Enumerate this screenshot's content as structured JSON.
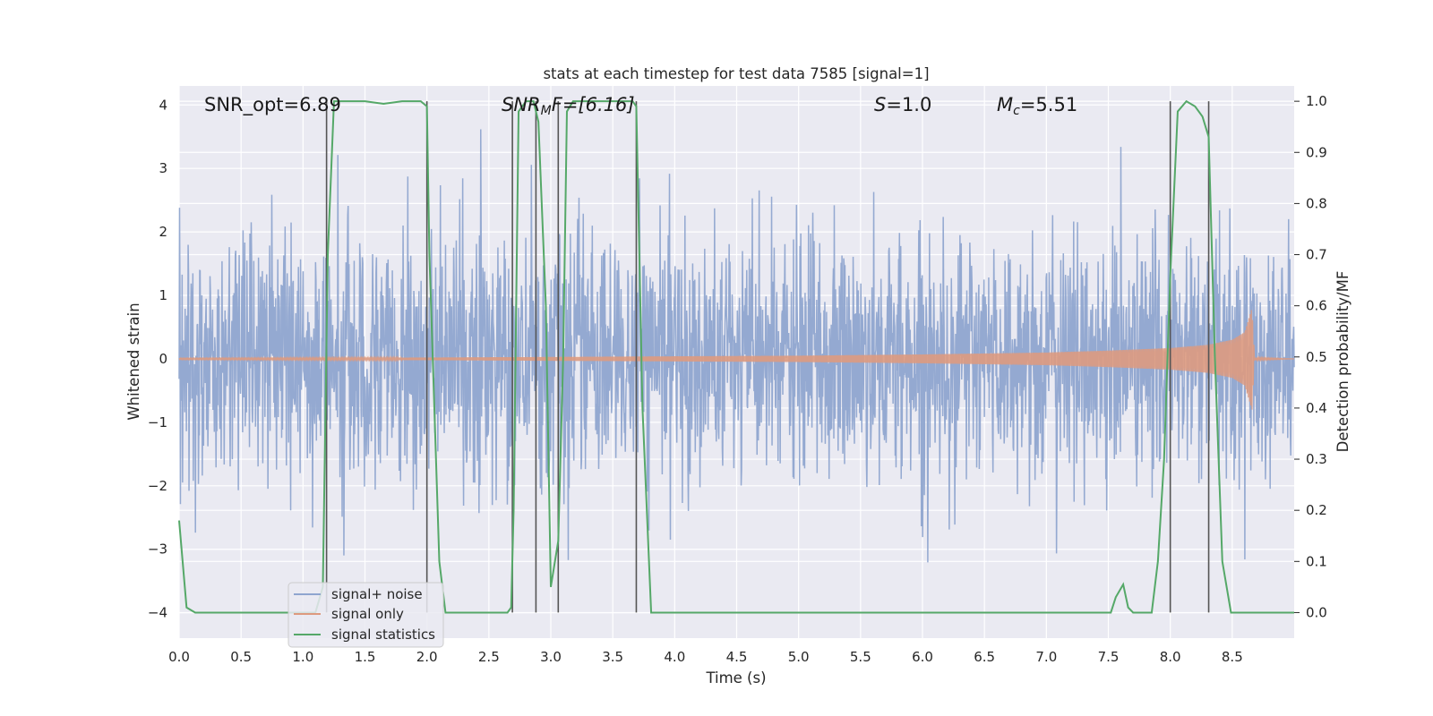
{
  "chart_data": {
    "type": "line",
    "title": "stats at each timestep for test data 7585 [signal=1]",
    "xlabel": "Time (s)",
    "ylabel_left": "Whitened strain",
    "ylabel_right": "Detection probability/MF",
    "xlim": [
      0,
      9
    ],
    "ylim_left": [
      -4.4,
      4.3
    ],
    "ylim_right": [
      -0.05,
      1.03
    ],
    "x_ticks": [
      "0.0",
      "0.5",
      "1.0",
      "1.5",
      "2.0",
      "2.5",
      "3.0",
      "3.5",
      "4.0",
      "4.5",
      "5.0",
      "5.5",
      "6.0",
      "6.5",
      "7.0",
      "7.5",
      "8.0",
      "8.5"
    ],
    "y_left_ticks": [
      "4",
      "3",
      "2",
      "1",
      "0",
      "−1",
      "−2",
      "−3",
      "−4"
    ],
    "y_right_ticks": [
      "1.0",
      "0.9",
      "0.8",
      "0.7",
      "0.6",
      "0.5",
      "0.4",
      "0.3",
      "0.2",
      "0.1",
      "0.0"
    ],
    "grid": true,
    "legend_position": "lower-left",
    "annotations": {
      "snr_opt": "SNR_opt=6.89",
      "snr_mf_main": "SNR",
      "snr_mf_sub": "M",
      "snr_mf_rest": "F=[6.16]",
      "s_main": "S",
      "s_rest": "=1.0",
      "mc_main": "M",
      "mc_sub": "c",
      "mc_rest": "=5.51"
    },
    "vertical_lines_x": [
      1.19,
      2.0,
      2.69,
      2.88,
      3.06,
      3.69,
      8.0,
      8.31
    ],
    "series": [
      {
        "name": "signal+ noise",
        "color": "#8fa5cf",
        "axis": "left",
        "description_values": {
          "noise_std": 0.95,
          "x_range": [
            0,
            9
          ]
        }
      },
      {
        "name": "signal only",
        "color": "#dd9a7f",
        "axis": "left",
        "envelope": {
          "x": [
            0.0,
            2.0,
            3.0,
            4.0,
            5.0,
            6.0,
            7.0,
            7.5,
            8.0,
            8.3,
            8.5,
            8.6,
            8.66,
            8.68,
            9.0
          ],
          "amp": [
            0.01,
            0.02,
            0.03,
            0.04,
            0.05,
            0.07,
            0.1,
            0.13,
            0.17,
            0.22,
            0.3,
            0.42,
            0.8,
            0.02,
            0.0
          ]
        }
      },
      {
        "name": "signal statistics",
        "color": "#55a868",
        "axis": "right",
        "x": [
          0.0,
          0.06,
          0.13,
          1.1,
          1.16,
          1.2,
          1.25,
          1.5,
          1.65,
          1.8,
          1.95,
          2.0,
          2.02,
          2.1,
          2.15,
          2.6,
          2.65,
          2.68,
          2.7,
          2.74,
          2.8,
          2.86,
          2.9,
          2.96,
          3.0,
          3.06,
          3.1,
          3.13,
          3.18,
          3.6,
          3.66,
          3.69,
          3.74,
          3.81,
          7.52,
          7.56,
          7.62,
          7.66,
          7.7,
          7.75,
          7.85,
          7.9,
          7.95,
          8.0,
          8.06,
          8.13,
          8.2,
          8.26,
          8.31,
          8.36,
          8.42,
          8.49,
          8.55,
          9.0
        ],
        "values": [
          0.18,
          0.01,
          0.0,
          0.0,
          0.05,
          0.7,
          1.0,
          1.0,
          0.995,
          1.0,
          1.0,
          0.99,
          0.7,
          0.1,
          0.0,
          0.0,
          0.0,
          0.01,
          0.2,
          0.98,
          1.0,
          1.0,
          0.96,
          0.6,
          0.05,
          0.14,
          0.5,
          0.98,
          1.0,
          1.0,
          1.0,
          0.99,
          0.4,
          0.0,
          0.0,
          0.03,
          0.055,
          0.01,
          0.0,
          0.0,
          0.0,
          0.1,
          0.3,
          0.66,
          0.98,
          1.0,
          0.99,
          0.97,
          0.93,
          0.5,
          0.1,
          0.0,
          0.0,
          0.0
        ]
      }
    ]
  }
}
